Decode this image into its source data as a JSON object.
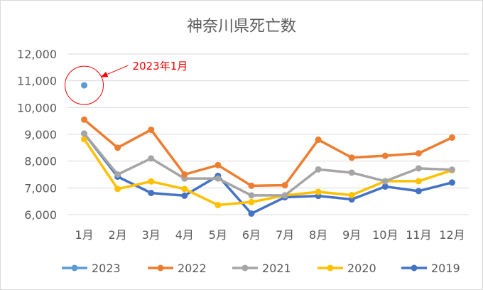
{
  "chart_data": {
    "type": "line",
    "title": "神奈川県死亡数",
    "categories": [
      "1月",
      "2月",
      "3月",
      "4月",
      "5月",
      "6月",
      "7月",
      "8月",
      "9月",
      "10月",
      "11月",
      "12月"
    ],
    "ylim": [
      6000,
      12000
    ],
    "yticks": [
      "6,000",
      "7,000",
      "8,000",
      "9,000",
      "10,000",
      "11,000",
      "12,000"
    ],
    "grid": true,
    "legend_position": "bottom",
    "series": [
      {
        "name": "2023",
        "color": "#5b9bd5",
        "values": [
          10830,
          null,
          null,
          null,
          null,
          null,
          null,
          null,
          null,
          null,
          null,
          null
        ]
      },
      {
        "name": "2022",
        "color": "#ed7d31",
        "values": [
          9550,
          8500,
          9170,
          7500,
          7850,
          7080,
          7100,
          8800,
          8130,
          8200,
          8290,
          8880
        ]
      },
      {
        "name": "2021",
        "color": "#a5a5a5",
        "values": [
          9030,
          7500,
          8100,
          7350,
          7350,
          6720,
          6720,
          7690,
          7570,
          7250,
          7730,
          7680
        ]
      },
      {
        "name": "2020",
        "color": "#ffc000",
        "values": [
          8820,
          6960,
          7240,
          6960,
          6360,
          6470,
          6720,
          6850,
          6730,
          7250,
          7250,
          7660
        ]
      },
      {
        "name": "2019",
        "color": "#4472c4",
        "values": [
          9030,
          7420,
          6810,
          6710,
          7450,
          6040,
          6650,
          6700,
          6570,
          7050,
          6880,
          7200
        ]
      }
    ],
    "annotation": {
      "text": "2023年1月",
      "color": "#ff0000"
    }
  }
}
